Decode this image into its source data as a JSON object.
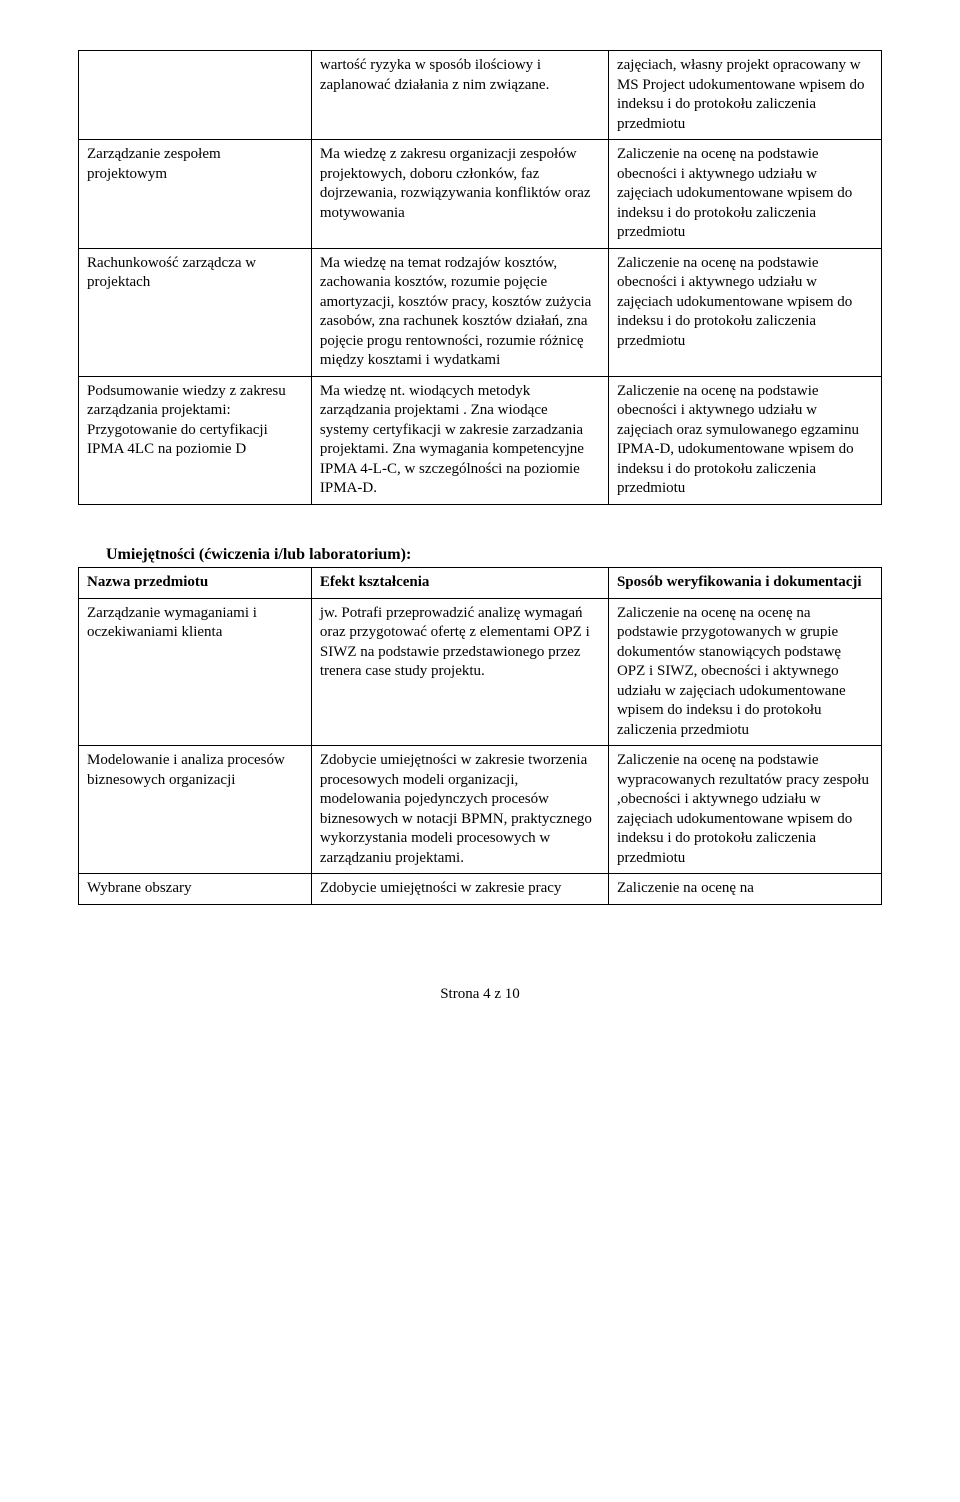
{
  "table1": {
    "rows": [
      {
        "c1": "",
        "c2": "wartość ryzyka w sposób ilościowy i zaplanować działania z nim związane.",
        "c3": "zajęciach, własny projekt opracowany w MS Project udokumentowane wpisem do indeksu i do protokołu zaliczenia przedmiotu"
      },
      {
        "c1": "Zarządzanie zespołem projektowym",
        "c2": "Ma wiedzę z zakresu organizacji zespołów projektowych, doboru członków, faz dojrzewania, rozwiązywania konfliktów oraz motywowania",
        "c3": "Zaliczenie na ocenę na podstawie obecności i aktywnego udziału w zajęciach udokumentowane wpisem do indeksu i do protokołu zaliczenia przedmiotu"
      },
      {
        "c1": "Rachunkowość zarządcza w projektach",
        "c2": "Ma wiedzę na temat rodzajów kosztów, zachowania kosztów, rozumie pojęcie amortyzacji, kosztów pracy, kosztów zużycia zasobów, zna rachunek kosztów działań, zna pojęcie progu rentowności, rozumie różnicę między kosztami i wydatkami",
        "c3": "Zaliczenie na ocenę na podstawie obecności i aktywnego udziału w zajęciach udokumentowane wpisem do indeksu i do protokołu zaliczenia przedmiotu"
      },
      {
        "c1": "Podsumowanie wiedzy z zakresu zarządzania projektami: Przygotowanie do certyfikacji IPMA 4LC na poziomie D",
        "c2": " Ma wiedzę nt. wiodących metodyk zarządzania projektami . Zna wiodące systemy certyfikacji w zakresie zarzadzania projektami. Zna wymagania kompetencyjne IPMA 4-L-C, w szczególności na poziomie IPMA-D.",
        "c3": " Zaliczenie na ocenę na podstawie obecności i aktywnego udziału w zajęciach oraz symulowanego egzaminu IPMA-D, udokumentowane wpisem do indeksu i do protokołu zaliczenia przedmiotu"
      }
    ]
  },
  "section2": {
    "heading": "Umiejętności (ćwiczenia i/lub laboratorium):",
    "header": {
      "c1": "Nazwa przedmiotu",
      "c2": "Efekt kształcenia",
      "c3": "Sposób weryfikowania i dokumentacji"
    },
    "rows": [
      {
        "c1": "Zarządzanie wymaganiami i oczekiwaniami klienta",
        "c2": "jw. Potrafi przeprowadzić analizę wymagań oraz przygotować ofertę z elementami OPZ i SIWZ na podstawie przedstawionego przez trenera case study projektu.",
        "c3": "Zaliczenie na ocenę na ocenę na podstawie przygotowanych w grupie dokumentów stanowiących podstawę OPZ i SIWZ, obecności i aktywnego udziału w zajęciach udokumentowane wpisem do indeksu i do protokołu zaliczenia przedmiotu"
      },
      {
        "c1": "Modelowanie i analiza procesów biznesowych organizacji",
        "c2": "Zdobycie umiejętności w zakresie tworzenia procesowych modeli organizacji, modelowania pojedynczych procesów biznesowych w notacji BPMN, praktycznego wykorzystania modeli procesowych w zarządzaniu projektami.",
        "c3": "Zaliczenie na ocenę na podstawie wypracowanych rezultatów pracy zespołu ,obecności i aktywnego udziału w zajęciach udokumentowane wpisem do indeksu i do protokołu zaliczenia przedmiotu"
      },
      {
        "c1": "Wybrane obszary",
        "c2": "Zdobycie umiejętności w zakresie pracy",
        "c3": "Zaliczenie na ocenę na"
      }
    ]
  },
  "footer": "Strona 4 z 10"
}
